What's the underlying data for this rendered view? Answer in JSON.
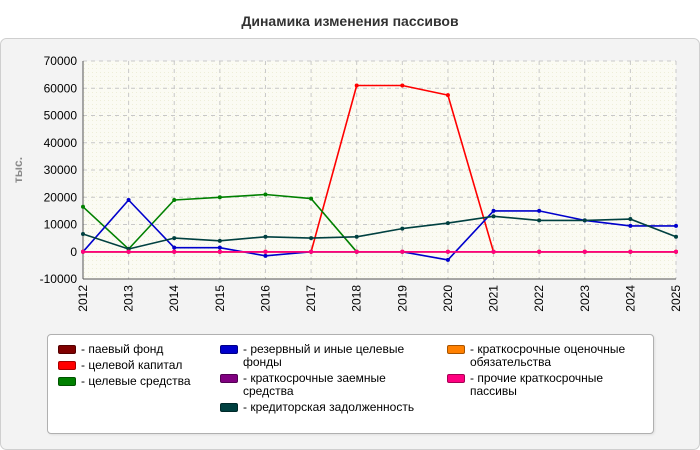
{
  "chart_data": {
    "type": "line",
    "title": "Динамика изменения пассивов",
    "ylabel": "тыс.",
    "xlabel": "",
    "ylim": [
      -10000,
      70000
    ],
    "yticks": [
      -10000,
      0,
      10000,
      20000,
      30000,
      40000,
      50000,
      60000,
      70000
    ],
    "ytick_labels": [
      "-10000",
      "0",
      "10000",
      "20000",
      "30000",
      "40000",
      "50000",
      "60000",
      "70000"
    ],
    "categories": [
      "2012",
      "2013",
      "2014",
      "2015",
      "2016",
      "2017",
      "2018",
      "2019",
      "2020",
      "2021",
      "2022",
      "2023",
      "2024",
      "2025"
    ],
    "grid": true,
    "legend_position": "bottom",
    "series": [
      {
        "name": "- паевый фонд",
        "color": "#800000",
        "values": [
          0,
          0,
          0,
          0,
          0,
          0,
          0,
          0,
          0,
          0,
          0,
          0,
          0,
          0
        ]
      },
      {
        "name": "- целевой капитал",
        "color": "#ff0000",
        "values": [
          0,
          0,
          0,
          0,
          0,
          0,
          61000,
          61000,
          57500,
          0,
          0,
          0,
          0,
          0
        ]
      },
      {
        "name": "- целевые средства",
        "color": "#008000",
        "values": [
          16500,
          1000,
          19000,
          20000,
          21000,
          19500,
          0,
          null,
          null,
          null,
          null,
          null,
          null,
          null
        ]
      },
      {
        "name": "- резервный и иные целевые фонды",
        "color": "#0000cc",
        "values": [
          0,
          19000,
          1500,
          1500,
          -1500,
          0,
          0,
          0,
          -3000,
          15000,
          15000,
          11500,
          9500,
          9500
        ]
      },
      {
        "name": "- краткосрочные заемные средства",
        "color": "#800080",
        "values": [
          0,
          0,
          0,
          0,
          0,
          0,
          0,
          0,
          0,
          0,
          0,
          0,
          0,
          0
        ]
      },
      {
        "name": "- кредиторская задолженность",
        "color": "#004040",
        "values": [
          6500,
          1000,
          5000,
          4000,
          5500,
          5000,
          5500,
          8500,
          10500,
          13000,
          11500,
          11500,
          12000,
          5500
        ]
      },
      {
        "name": "- краткосрочные оценочные обязательства",
        "color": "#ff8000",
        "values": [
          0,
          0,
          0,
          0,
          0,
          0,
          0,
          0,
          0,
          0,
          0,
          0,
          0,
          0
        ]
      },
      {
        "name": "- прочие краткосрочные пассивы",
        "color": "#ff0080",
        "values": [
          0,
          0,
          0,
          0,
          0,
          0,
          0,
          0,
          0,
          0,
          0,
          0,
          0,
          0
        ]
      }
    ]
  }
}
